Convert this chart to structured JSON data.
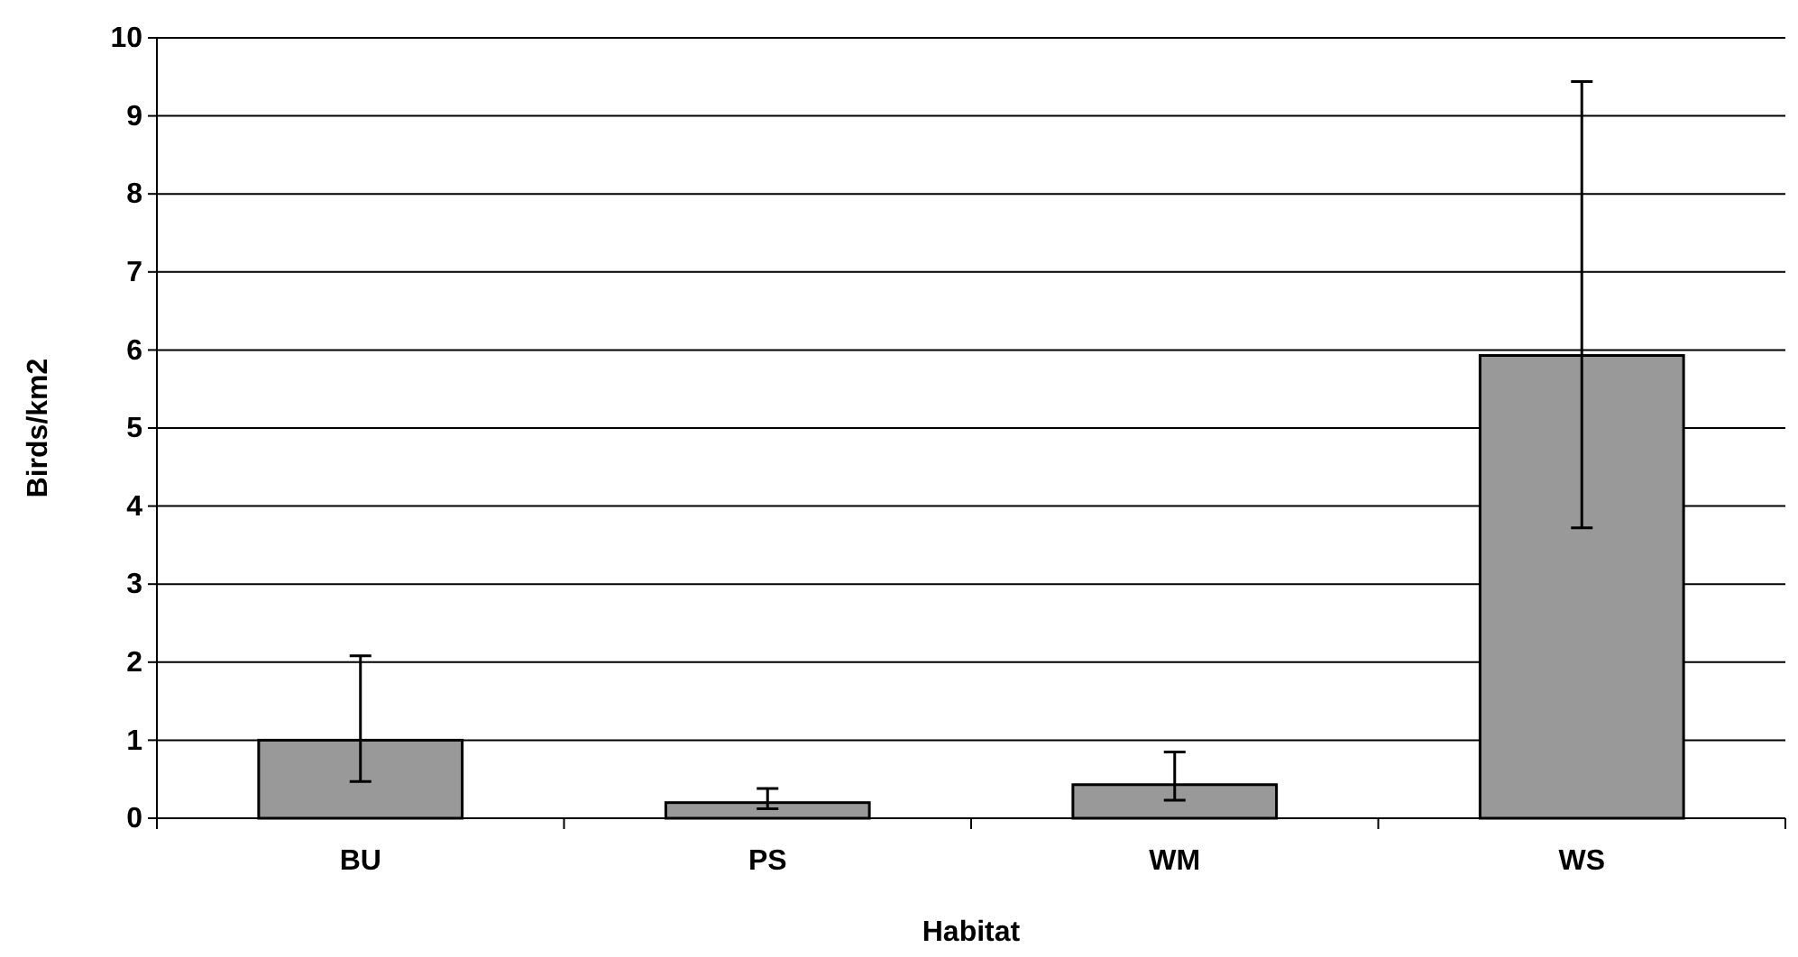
{
  "chart_data": {
    "type": "bar",
    "xlabel": "Habitat",
    "ylabel": "Birds/km2",
    "categories": [
      "BU",
      "PS",
      "WM",
      "WS"
    ],
    "values": [
      1.0,
      0.2,
      0.43,
      5.93
    ],
    "errors": [
      [
        0.47,
        2.08
      ],
      [
        0.12,
        0.38
      ],
      [
        0.23,
        0.85
      ],
      [
        3.72,
        9.44
      ]
    ],
    "color": "#999999",
    "ylim": [
      0,
      10
    ],
    "yticks": [
      0,
      1,
      2,
      3,
      4,
      5,
      6,
      7,
      8,
      9,
      10
    ],
    "grid": "y"
  }
}
